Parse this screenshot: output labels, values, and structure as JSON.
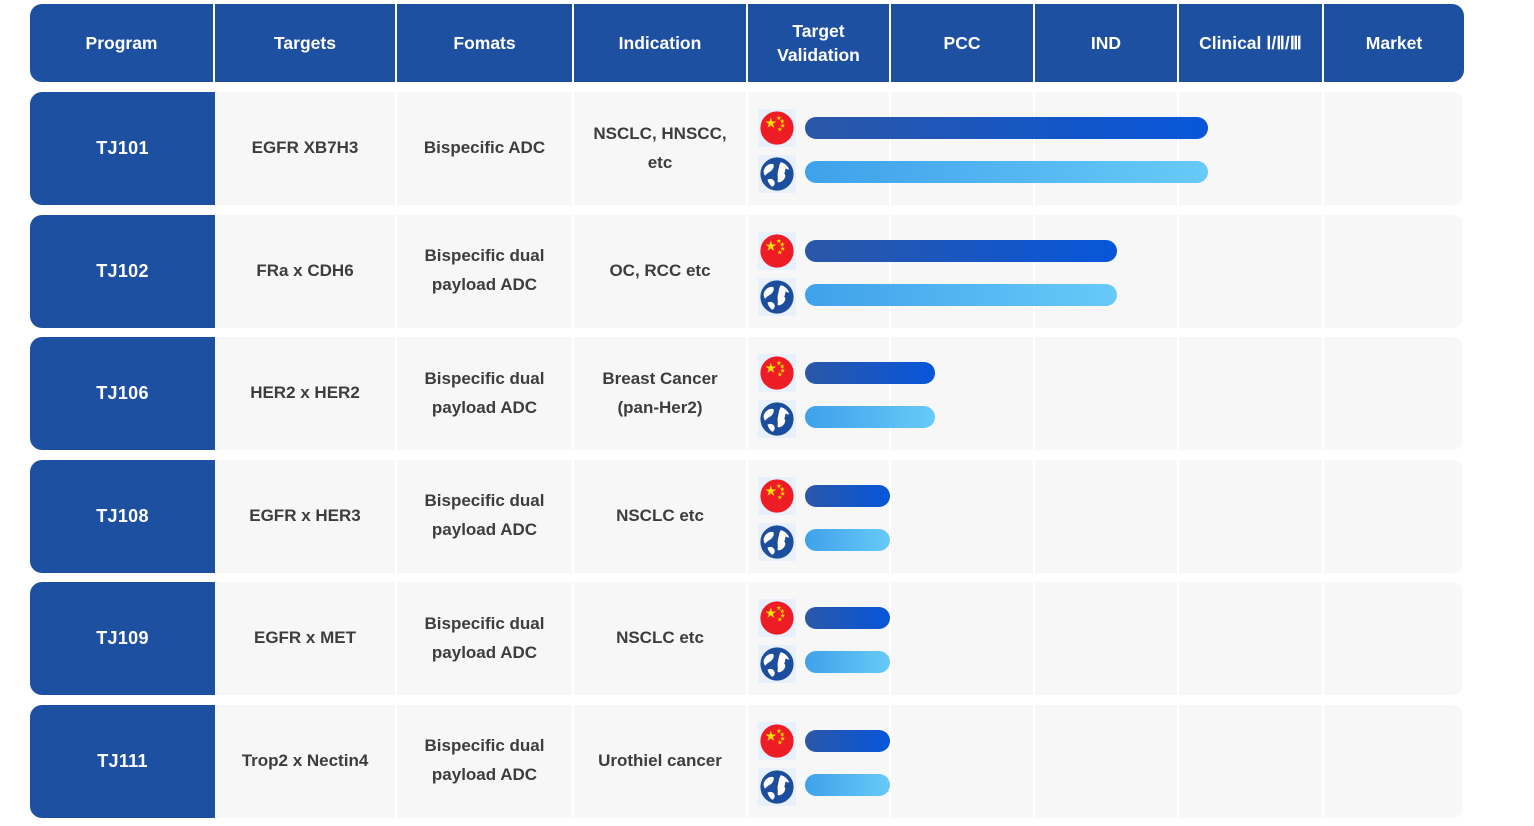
{
  "colors": {
    "header_blue": "#1e50a2",
    "row_bg": "#f7f7f8",
    "separator": "#ffffff",
    "text_dark": "#3d3d3d",
    "bar_china_gradient": [
      "#2b57a7",
      "#0756da"
    ],
    "bar_global_gradient": [
      "#3fa1ea",
      "#68caf8"
    ],
    "icon_bg": "#e8f1fb",
    "flag_red": "#ee1c25",
    "flag_star_yellow": "#ffde00",
    "globe_blue": "#1c4e9d",
    "globe_land": "#ffffff"
  },
  "header": {
    "columns": [
      {
        "label": "Program"
      },
      {
        "label": "Targets"
      },
      {
        "label": "Fomats"
      },
      {
        "label": "Indication"
      },
      {
        "label": "Target Validation"
      },
      {
        "label": "PCC"
      },
      {
        "label": "IND"
      },
      {
        "label": "Clinical Ⅰ/Ⅱ/Ⅲ"
      },
      {
        "label": "Market"
      }
    ]
  },
  "stages": [
    "Target Validation",
    "PCC",
    "IND",
    "Clinical Ⅰ/Ⅱ/Ⅲ",
    "Market"
  ],
  "rows": [
    {
      "program": "TJ101",
      "targets": "EGFR XB7H3",
      "format": "Bispecific ADC",
      "indication": "NSCLC, HNSCC, etc",
      "bars": {
        "china": {
          "region": "China",
          "start_pct": 8,
          "end_pct": 64.2,
          "stage_reached": "Clinical Ⅰ/Ⅱ/Ⅲ"
        },
        "global": {
          "region": "Global",
          "start_pct": 8,
          "end_pct": 64.2,
          "stage_reached": "Clinical Ⅰ/Ⅱ/Ⅲ"
        }
      }
    },
    {
      "program": "TJ102",
      "targets": "FRa x CDH6",
      "format": "Bispecific dual payload ADC",
      "indication": "OC, RCC etc",
      "bars": {
        "china": {
          "region": "China",
          "start_pct": 8,
          "end_pct": 51.5,
          "stage_reached": "IND"
        },
        "global": {
          "region": "Global",
          "start_pct": 8,
          "end_pct": 51.5,
          "stage_reached": "IND"
        }
      }
    },
    {
      "program": "TJ106",
      "targets": "HER2 x HER2",
      "format": "Bispecific dual payload ADC",
      "indication": "Breast Cancer (pan-Her2)",
      "bars": {
        "china": {
          "region": "China",
          "start_pct": 8,
          "end_pct": 26.1,
          "stage_reached": "PCC"
        },
        "global": {
          "region": "Global",
          "start_pct": 8,
          "end_pct": 26.1,
          "stage_reached": "PCC"
        }
      }
    },
    {
      "program": "TJ108",
      "targets": "EGFR x HER3",
      "format": "Bispecific dual payload ADC",
      "indication": "NSCLC etc",
      "bars": {
        "china": {
          "region": "China",
          "start_pct": 8,
          "end_pct": 19.8,
          "stage_reached": "Target Validation"
        },
        "global": {
          "region": "Global",
          "start_pct": 8,
          "end_pct": 19.8,
          "stage_reached": "Target Validation"
        }
      }
    },
    {
      "program": "TJ109",
      "targets": "EGFR x MET",
      "format": "Bispecific dual payload ADC",
      "indication": "NSCLC etc",
      "bars": {
        "china": {
          "region": "China",
          "start_pct": 8,
          "end_pct": 19.8,
          "stage_reached": "Target Validation"
        },
        "global": {
          "region": "Global",
          "start_pct": 8,
          "end_pct": 19.8,
          "stage_reached": "Target Validation"
        }
      }
    },
    {
      "program": "TJ111",
      "targets": "Trop2 x Nectin4",
      "format": "Bispecific dual payload ADC",
      "indication": "Urothiel cancer",
      "bars": {
        "china": {
          "region": "China",
          "start_pct": 8,
          "end_pct": 19.8,
          "stage_reached": "Target Validation"
        },
        "global": {
          "region": "Global",
          "start_pct": 8,
          "end_pct": 19.8,
          "stage_reached": "Target Validation"
        }
      }
    }
  ],
  "chart_data": {
    "type": "bar",
    "orientation": "horizontal",
    "title": "",
    "categories": [
      "TJ101",
      "TJ102",
      "TJ106",
      "TJ108",
      "TJ109",
      "TJ111"
    ],
    "stage_axis": [
      "Target Validation",
      "PCC",
      "IND",
      "Clinical Ⅰ/Ⅱ/Ⅲ",
      "Market"
    ],
    "series": [
      {
        "name": "China",
        "icon": "china-flag-icon",
        "stage_reached": [
          "Clinical Ⅰ/Ⅱ/Ⅲ",
          "IND",
          "PCC",
          "Target Validation",
          "Target Validation",
          "Target Validation"
        ],
        "track_end_pct": [
          64.2,
          51.5,
          26.1,
          19.8,
          19.8,
          19.8
        ]
      },
      {
        "name": "Global",
        "icon": "globe-icon",
        "stage_reached": [
          "Clinical Ⅰ/Ⅱ/Ⅲ",
          "IND",
          "PCC",
          "Target Validation",
          "Target Validation",
          "Target Validation"
        ],
        "track_end_pct": [
          64.2,
          51.5,
          26.1,
          19.8,
          19.8,
          19.8
        ]
      }
    ],
    "grid": "vertical column separators only",
    "legend_position": "none"
  }
}
